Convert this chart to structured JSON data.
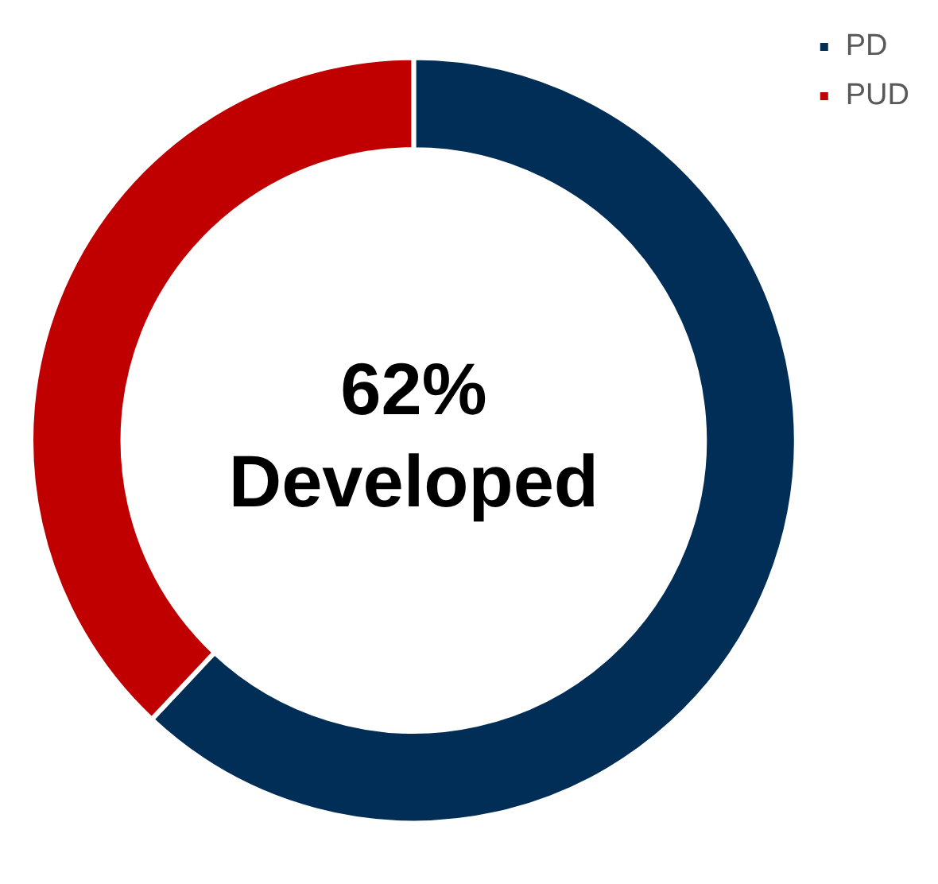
{
  "chart_data": {
    "type": "donut",
    "categories": [
      "PD",
      "PUD"
    ],
    "values": [
      62,
      38
    ],
    "colors": [
      "#002e56",
      "#c00000"
    ],
    "annotations": [
      "62%",
      "Developed"
    ],
    "legend": "top right"
  }
}
